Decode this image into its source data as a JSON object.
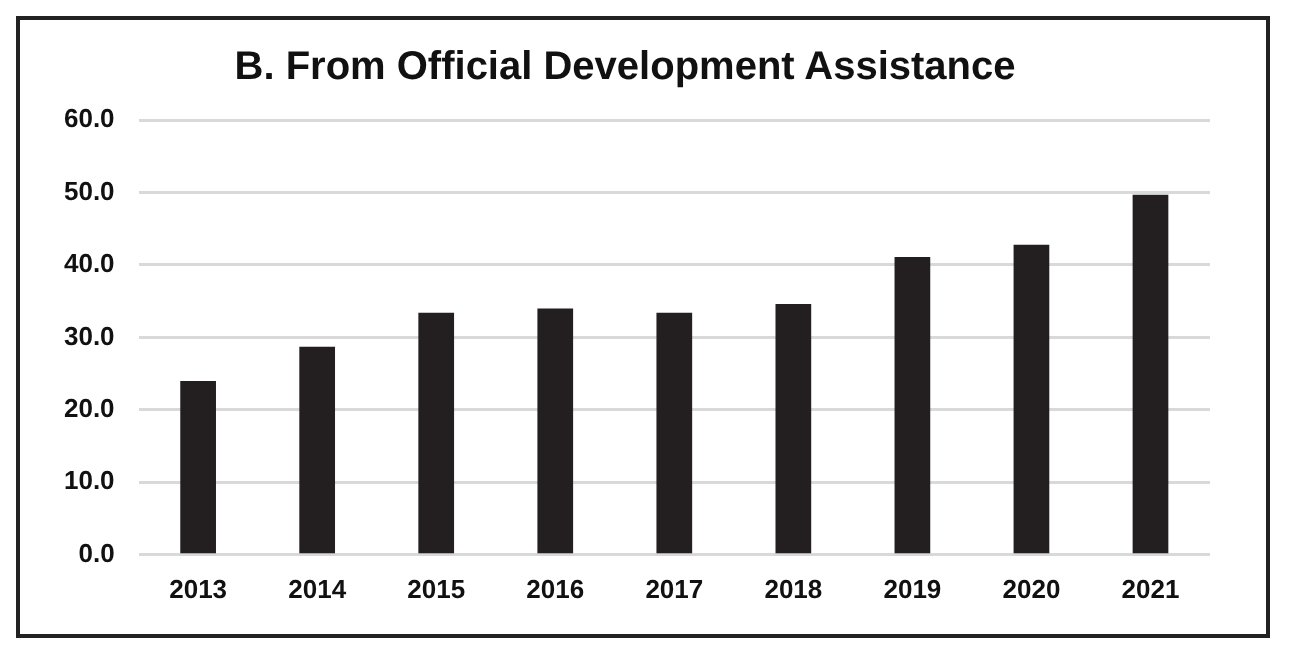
{
  "chart_data": {
    "type": "bar",
    "title": "B. From Official Development Assistance",
    "categories": [
      "2013",
      "2014",
      "2015",
      "2016",
      "2017",
      "2018",
      "2019",
      "2020",
      "2021"
    ],
    "values": [
      24.0,
      28.7,
      33.4,
      34.0,
      33.4,
      34.6,
      41.1,
      42.8,
      49.7
    ],
    "color": "#231f20",
    "ylim": [
      0,
      60
    ],
    "yticks": [
      {
        "value": 0,
        "label": "0.0"
      },
      {
        "value": 10,
        "label": "10.0"
      },
      {
        "value": 20,
        "label": "20.0"
      },
      {
        "value": 30,
        "label": "30.0"
      },
      {
        "value": 40,
        "label": "40.0"
      },
      {
        "value": 50,
        "label": "50.0"
      },
      {
        "value": 60,
        "label": "60.0"
      }
    ],
    "grid": "y",
    "legend": false
  }
}
